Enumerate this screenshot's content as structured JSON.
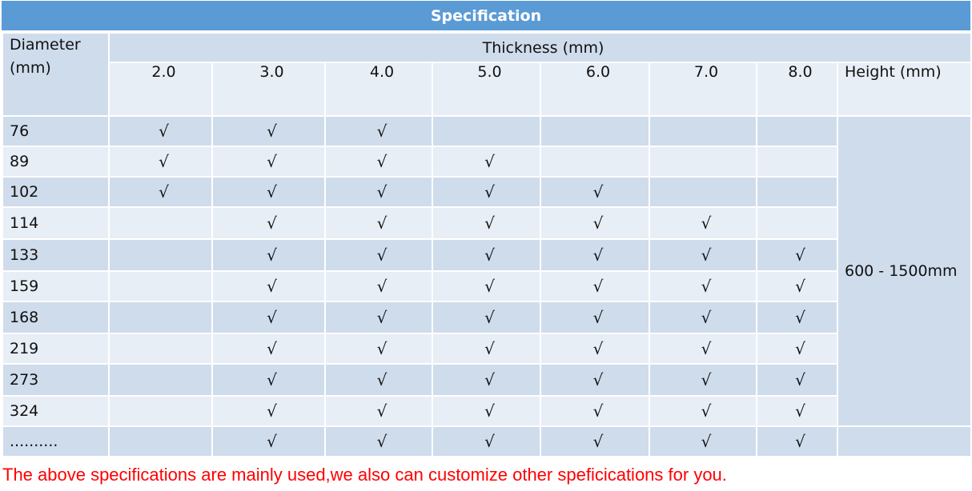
{
  "title": "Specification",
  "headers": {
    "diameter_line1": "Diameter",
    "diameter_line2": "(mm)",
    "thickness": "Thickness  (mm)",
    "height": "Height (mm)",
    "thickness_values": [
      "2.0",
      "3.0",
      "4.0",
      "5.0",
      "6.0",
      "7.0",
      "8.0"
    ]
  },
  "check_mark": "√",
  "height_value": "600 - 1500mm",
  "rows": [
    {
      "diameter": "76",
      "checks": [
        true,
        true,
        true,
        false,
        false,
        false,
        false
      ]
    },
    {
      "diameter": "89",
      "checks": [
        true,
        true,
        true,
        true,
        false,
        false,
        false
      ]
    },
    {
      "diameter": "102",
      "checks": [
        true,
        true,
        true,
        true,
        true,
        false,
        false
      ]
    },
    {
      "diameter": "114",
      "checks": [
        false,
        true,
        true,
        true,
        true,
        true,
        false
      ]
    },
    {
      "diameter": "133",
      "checks": [
        false,
        true,
        true,
        true,
        true,
        true,
        true
      ]
    },
    {
      "diameter": "159",
      "checks": [
        false,
        true,
        true,
        true,
        true,
        true,
        true
      ]
    },
    {
      "diameter": "168",
      "checks": [
        false,
        true,
        true,
        true,
        true,
        true,
        true
      ]
    },
    {
      "diameter": "219",
      "checks": [
        false,
        true,
        true,
        true,
        true,
        true,
        true
      ]
    },
    {
      "diameter": "273",
      "checks": [
        false,
        true,
        true,
        true,
        true,
        true,
        true
      ]
    },
    {
      "diameter": "324",
      "checks": [
        false,
        true,
        true,
        true,
        true,
        true,
        true
      ]
    },
    {
      "diameter": "..........",
      "checks": [
        false,
        true,
        true,
        true,
        true,
        true,
        true
      ]
    }
  ],
  "footnote": "The above specifications are mainly used,we also can customize other speficications for you.",
  "colors": {
    "title_bg": "#5b9bd5",
    "row_dark": "#cfdcec",
    "row_light": "#e8eef6",
    "footnote_text": "#ff0000"
  }
}
